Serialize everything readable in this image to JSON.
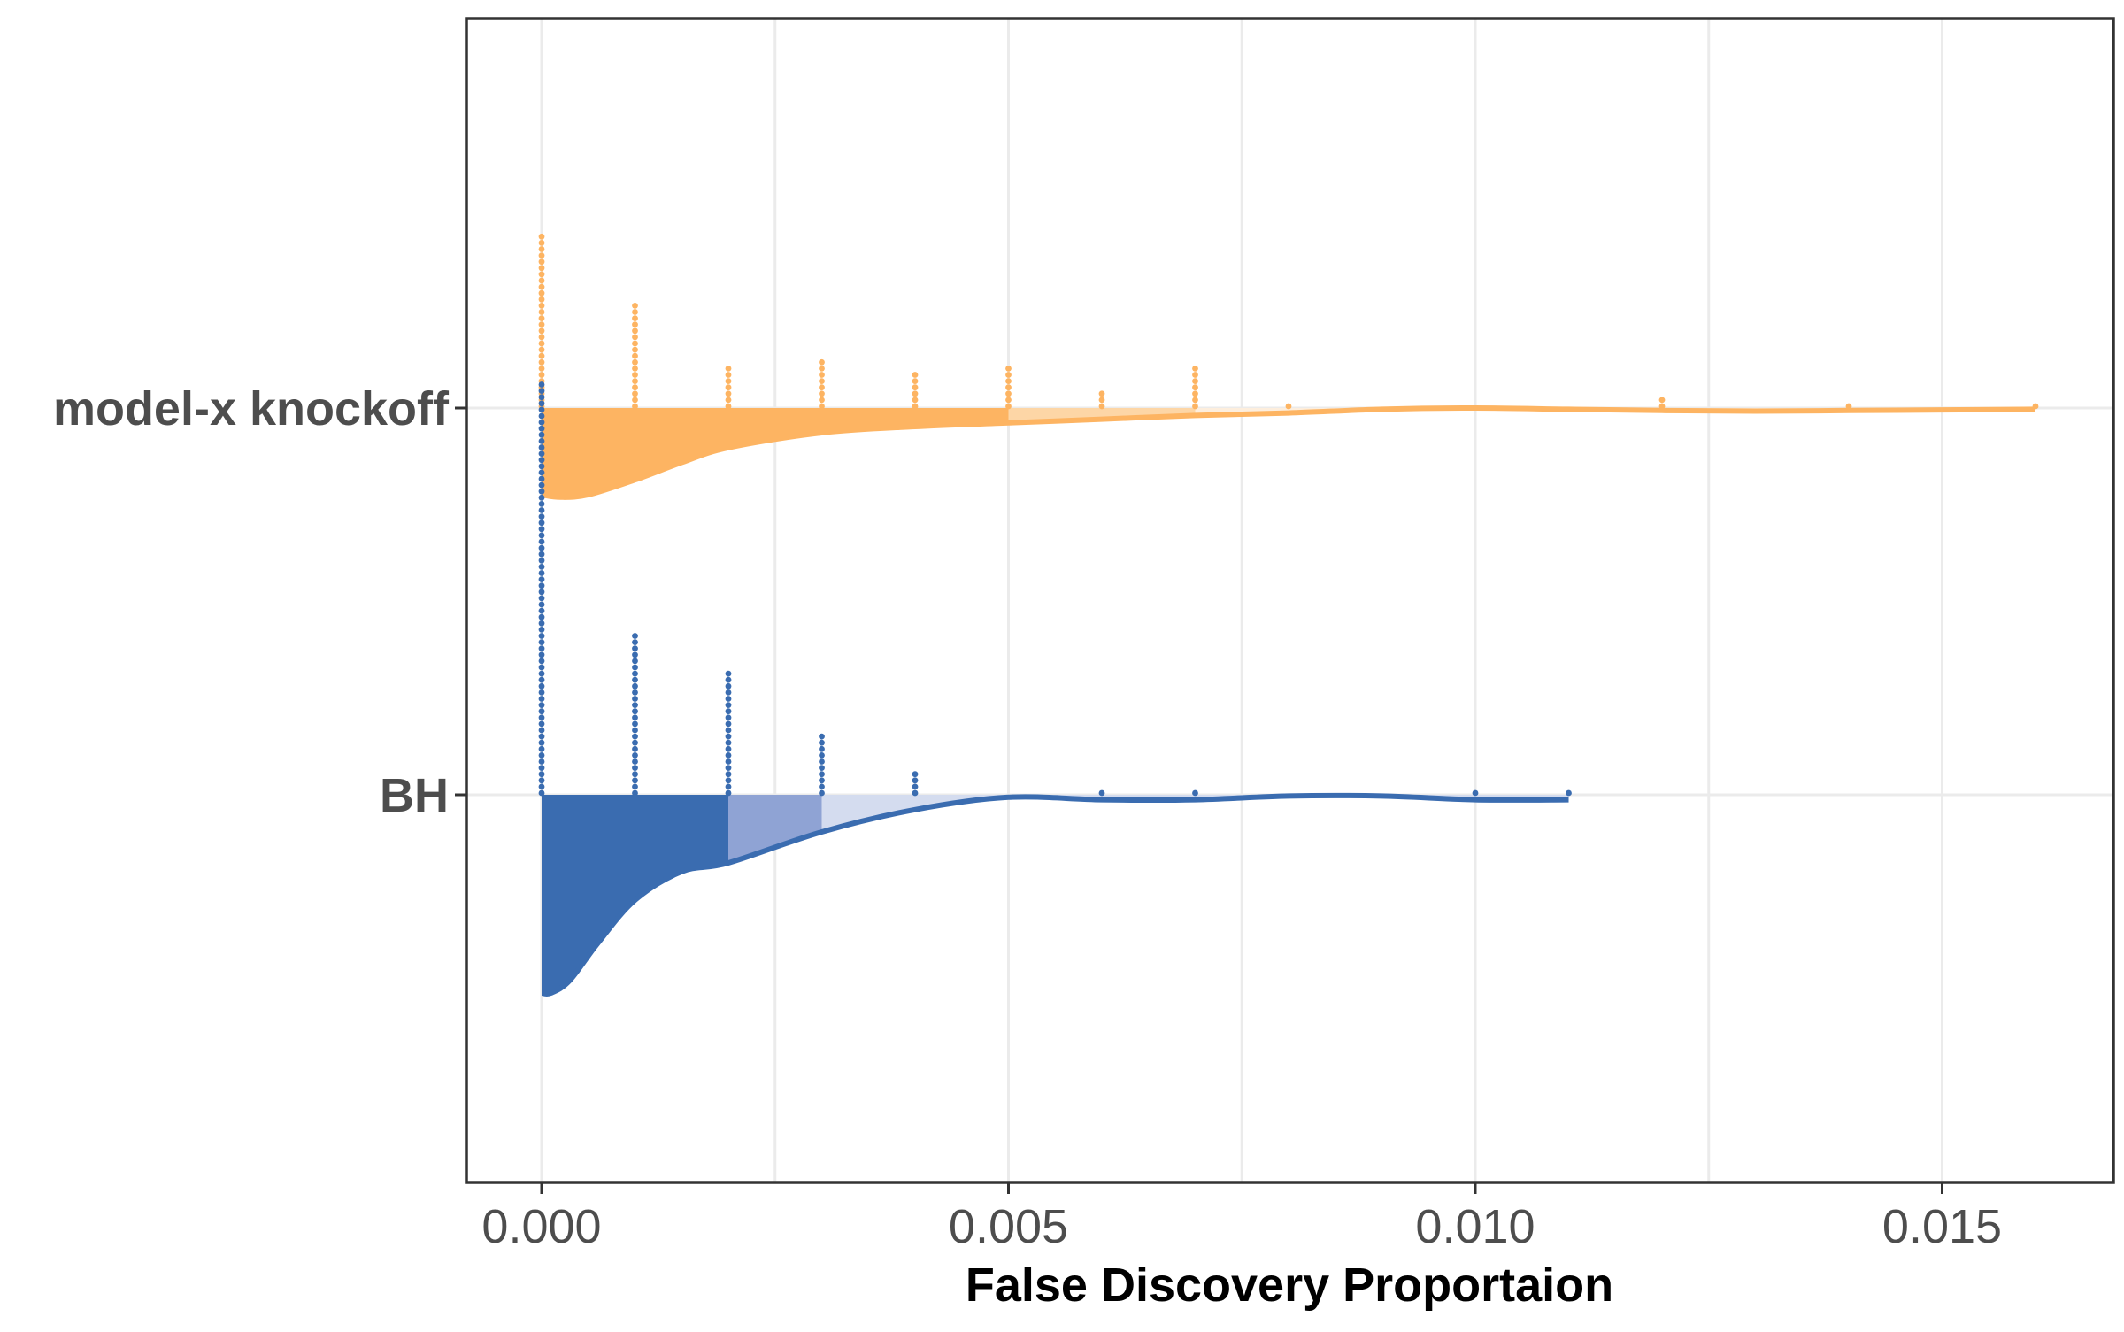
{
  "chart_data": {
    "type": "raincloud",
    "xlabel": "False Discovery Proportaion",
    "ylabel": "",
    "xlim": [
      -0.0008,
      0.0167
    ],
    "x_ticks": [
      0.0,
      0.005,
      0.01,
      0.015
    ],
    "x_tick_labels": [
      "0.000",
      "0.005",
      "0.010",
      "0.015"
    ],
    "grid": true,
    "legend": "none",
    "groups": [
      {
        "name": "model-x knockoff",
        "color": "#fdb462",
        "shade_colors": [
          "#fdb462",
          "#fdd6a6",
          "#fdeedd"
        ],
        "shade_breaks": [
          0.005,
          0.007
        ],
        "density": {
          "x": [
            0.0,
            0.0002,
            0.0005,
            0.001,
            0.0015,
            0.002,
            0.003,
            0.004,
            0.005,
            0.006,
            0.007,
            0.008,
            0.009,
            0.01,
            0.011,
            0.012,
            0.013,
            0.014,
            0.015,
            0.016
          ],
          "y": [
            0.7,
            0.72,
            0.7,
            0.58,
            0.44,
            0.32,
            0.2,
            0.15,
            0.12,
            0.09,
            0.06,
            0.04,
            0.01,
            0.0,
            0.01,
            0.02,
            0.025,
            0.02,
            0.015,
            0.01
          ]
        },
        "dots": [
          {
            "x": 0.0,
            "count": 28
          },
          {
            "x": 0.001,
            "count": 17
          },
          {
            "x": 0.002,
            "count": 7
          },
          {
            "x": 0.003,
            "count": 8
          },
          {
            "x": 0.004,
            "count": 6
          },
          {
            "x": 0.005,
            "count": 7
          },
          {
            "x": 0.006,
            "count": 3
          },
          {
            "x": 0.007,
            "count": 7
          },
          {
            "x": 0.008,
            "count": 1
          },
          {
            "x": 0.012,
            "count": 2
          },
          {
            "x": 0.014,
            "count": 1
          },
          {
            "x": 0.016,
            "count": 1
          }
        ]
      },
      {
        "name": "BH",
        "color": "#3a6cb0",
        "shade_colors": [
          "#3a6cb0",
          "#8fa3d4",
          "#d4dcef"
        ],
        "shade_breaks": [
          0.002,
          0.003
        ],
        "density": {
          "x": [
            0.0,
            0.0001,
            0.0003,
            0.0006,
            0.001,
            0.0015,
            0.002,
            0.003,
            0.004,
            0.005,
            0.006,
            0.007,
            0.008,
            0.009,
            0.01,
            0.011
          ],
          "y": [
            1.6,
            1.6,
            1.5,
            1.2,
            0.85,
            0.62,
            0.55,
            0.3,
            0.12,
            0.02,
            0.04,
            0.04,
            0.01,
            0.01,
            0.04,
            0.04
          ]
        },
        "dots": [
          {
            "x": 0.0,
            "count": 66
          },
          {
            "x": 0.001,
            "count": 26
          },
          {
            "x": 0.002,
            "count": 20
          },
          {
            "x": 0.003,
            "count": 10
          },
          {
            "x": 0.004,
            "count": 4
          },
          {
            "x": 0.006,
            "count": 1
          },
          {
            "x": 0.007,
            "count": 1
          },
          {
            "x": 0.01,
            "count": 1
          },
          {
            "x": 0.011,
            "count": 1
          }
        ]
      }
    ]
  }
}
